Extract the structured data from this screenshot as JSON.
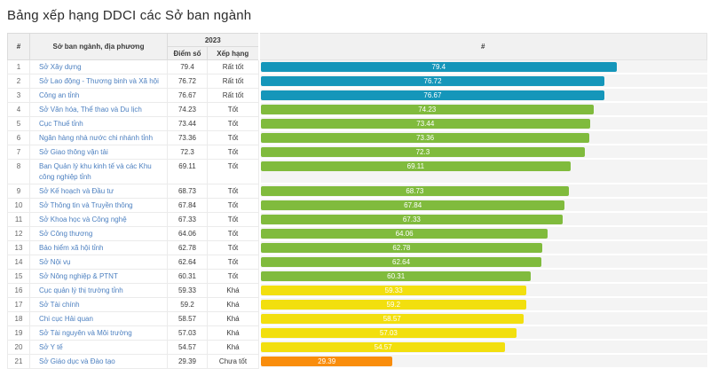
{
  "title": "Bảng xếp hạng DDCI các Sở ban ngành",
  "table": {
    "header": {
      "rank": "#",
      "department": "Sở ban ngành, địa phương",
      "year": "2023",
      "score": "Điểm số",
      "rating": "Xếp hạng",
      "chart": "#"
    }
  },
  "rating_colors": {
    "Rất tốt": "#1596ba",
    "Tốt": "#80bb3d",
    "Khá": "#f2df0e",
    "Chưa tốt": "#f98d0c"
  },
  "rows": [
    {
      "rank": "1",
      "name": "Sở Xây dựng",
      "score": "79.4",
      "rating": "Rất tốt",
      "value": 79.4
    },
    {
      "rank": "2",
      "name": "Sở Lao động - Thương binh và Xã hội",
      "score": "76.72",
      "rating": "Rất tốt",
      "value": 76.72
    },
    {
      "rank": "3",
      "name": "Công an tỉnh",
      "score": "76.67",
      "rating": "Rất tốt",
      "value": 76.67
    },
    {
      "rank": "4",
      "name": "Sở Văn hóa, Thể thao và Du lịch",
      "score": "74.23",
      "rating": "Tốt",
      "value": 74.23
    },
    {
      "rank": "5",
      "name": "Cục Thuế tỉnh",
      "score": "73.44",
      "rating": "Tốt",
      "value": 73.44
    },
    {
      "rank": "6",
      "name": "Ngân hàng nhà nước chi nhánh tỉnh",
      "score": "73.36",
      "rating": "Tốt",
      "value": 73.36
    },
    {
      "rank": "7",
      "name": "Sở Giao thông vận tải",
      "score": "72.3",
      "rating": "Tốt",
      "value": 72.3
    },
    {
      "rank": "8",
      "name": "Ban Quản lý khu kinh tế và các Khu công nghiệp tỉnh",
      "score": "69.11",
      "rating": "Tốt",
      "value": 69.11
    },
    {
      "rank": "9",
      "name": "Sở Kế hoạch và Đầu tư",
      "score": "68.73",
      "rating": "Tốt",
      "value": 68.73
    },
    {
      "rank": "10",
      "name": "Sở Thông tin và Truyền thông",
      "score": "67.84",
      "rating": "Tốt",
      "value": 67.84
    },
    {
      "rank": "11",
      "name": "Sở Khoa học và Công nghệ",
      "score": "67.33",
      "rating": "Tốt",
      "value": 67.33
    },
    {
      "rank": "12",
      "name": "Sở Công thương",
      "score": "64.06",
      "rating": "Tốt",
      "value": 64.06
    },
    {
      "rank": "13",
      "name": "Bảo hiểm xã hội tỉnh",
      "score": "62.78",
      "rating": "Tốt",
      "value": 62.78
    },
    {
      "rank": "14",
      "name": "Sở Nội vụ",
      "score": "62.64",
      "rating": "Tốt",
      "value": 62.64
    },
    {
      "rank": "15",
      "name": "Sở Nông nghiệp & PTNT",
      "score": "60.31",
      "rating": "Tốt",
      "value": 60.31
    },
    {
      "rank": "16",
      "name": "Cục quản lý thị trường tỉnh",
      "score": "59.33",
      "rating": "Khá",
      "value": 59.33
    },
    {
      "rank": "17",
      "name": "Sở Tài chính",
      "score": "59.2",
      "rating": "Khá",
      "value": 59.2
    },
    {
      "rank": "18",
      "name": "Chi cục Hải quan",
      "score": "58.57",
      "rating": "Khá",
      "value": 58.57
    },
    {
      "rank": "19",
      "name": "Sở Tài nguyên và Môi trường",
      "score": "57.03",
      "rating": "Khá",
      "value": 57.03
    },
    {
      "rank": "20",
      "name": "Sở Y tế",
      "score": "54.57",
      "rating": "Khá",
      "value": 54.57
    },
    {
      "rank": "21",
      "name": "Sở Giáo dục và Đào tạo",
      "score": "29.39",
      "rating": "Chưa tốt",
      "value": 29.39
    }
  ],
  "chart_data": {
    "type": "bar",
    "orientation": "horizontal",
    "title": "Bảng xếp hạng DDCI các Sở ban ngành",
    "xlabel": "",
    "ylabel": "",
    "xlim": [
      0,
      100
    ],
    "grid": false,
    "value_labels": "inside-center-white",
    "categories": [
      "Sở Xây dựng",
      "Sở Lao động - Thương binh và Xã hội",
      "Công an tỉnh",
      "Sở Văn hóa, Thể thao và Du lịch",
      "Cục Thuế tỉnh",
      "Ngân hàng nhà nước chi nhánh tỉnh",
      "Sở Giao thông vận tải",
      "Ban Quản lý khu kinh tế và các Khu công nghiệp tỉnh",
      "Sở Kế hoạch và Đầu tư",
      "Sở Thông tin và Truyền thông",
      "Sở Khoa học và Công nghệ",
      "Sở Công thương",
      "Bảo hiểm xã hội tỉnh",
      "Sở Nội vụ",
      "Sở Nông nghiệp & PTNT",
      "Cục quản lý thị trường tỉnh",
      "Sở Tài chính",
      "Chi cục Hải quan",
      "Sở Tài nguyên và Môi trường",
      "Sở Y tế",
      "Sở Giáo dục và Đào tạo"
    ],
    "values": [
      79.4,
      76.72,
      76.67,
      74.23,
      73.44,
      73.36,
      72.3,
      69.11,
      68.73,
      67.84,
      67.33,
      64.06,
      62.78,
      62.64,
      60.31,
      59.33,
      59.2,
      58.57,
      57.03,
      54.57,
      29.39
    ],
    "ratings": [
      "Rất tốt",
      "Rất tốt",
      "Rất tốt",
      "Tốt",
      "Tốt",
      "Tốt",
      "Tốt",
      "Tốt",
      "Tốt",
      "Tốt",
      "Tốt",
      "Tốt",
      "Tốt",
      "Tốt",
      "Tốt",
      "Khá",
      "Khá",
      "Khá",
      "Khá",
      "Khá",
      "Chưa tốt"
    ],
    "bar_colors": [
      "#1596ba",
      "#1596ba",
      "#1596ba",
      "#80bb3d",
      "#80bb3d",
      "#80bb3d",
      "#80bb3d",
      "#80bb3d",
      "#80bb3d",
      "#80bb3d",
      "#80bb3d",
      "#80bb3d",
      "#80bb3d",
      "#80bb3d",
      "#80bb3d",
      "#f2df0e",
      "#f2df0e",
      "#f2df0e",
      "#f2df0e",
      "#f2df0e",
      "#f98d0c"
    ],
    "track_color": "#f4f4f4"
  }
}
